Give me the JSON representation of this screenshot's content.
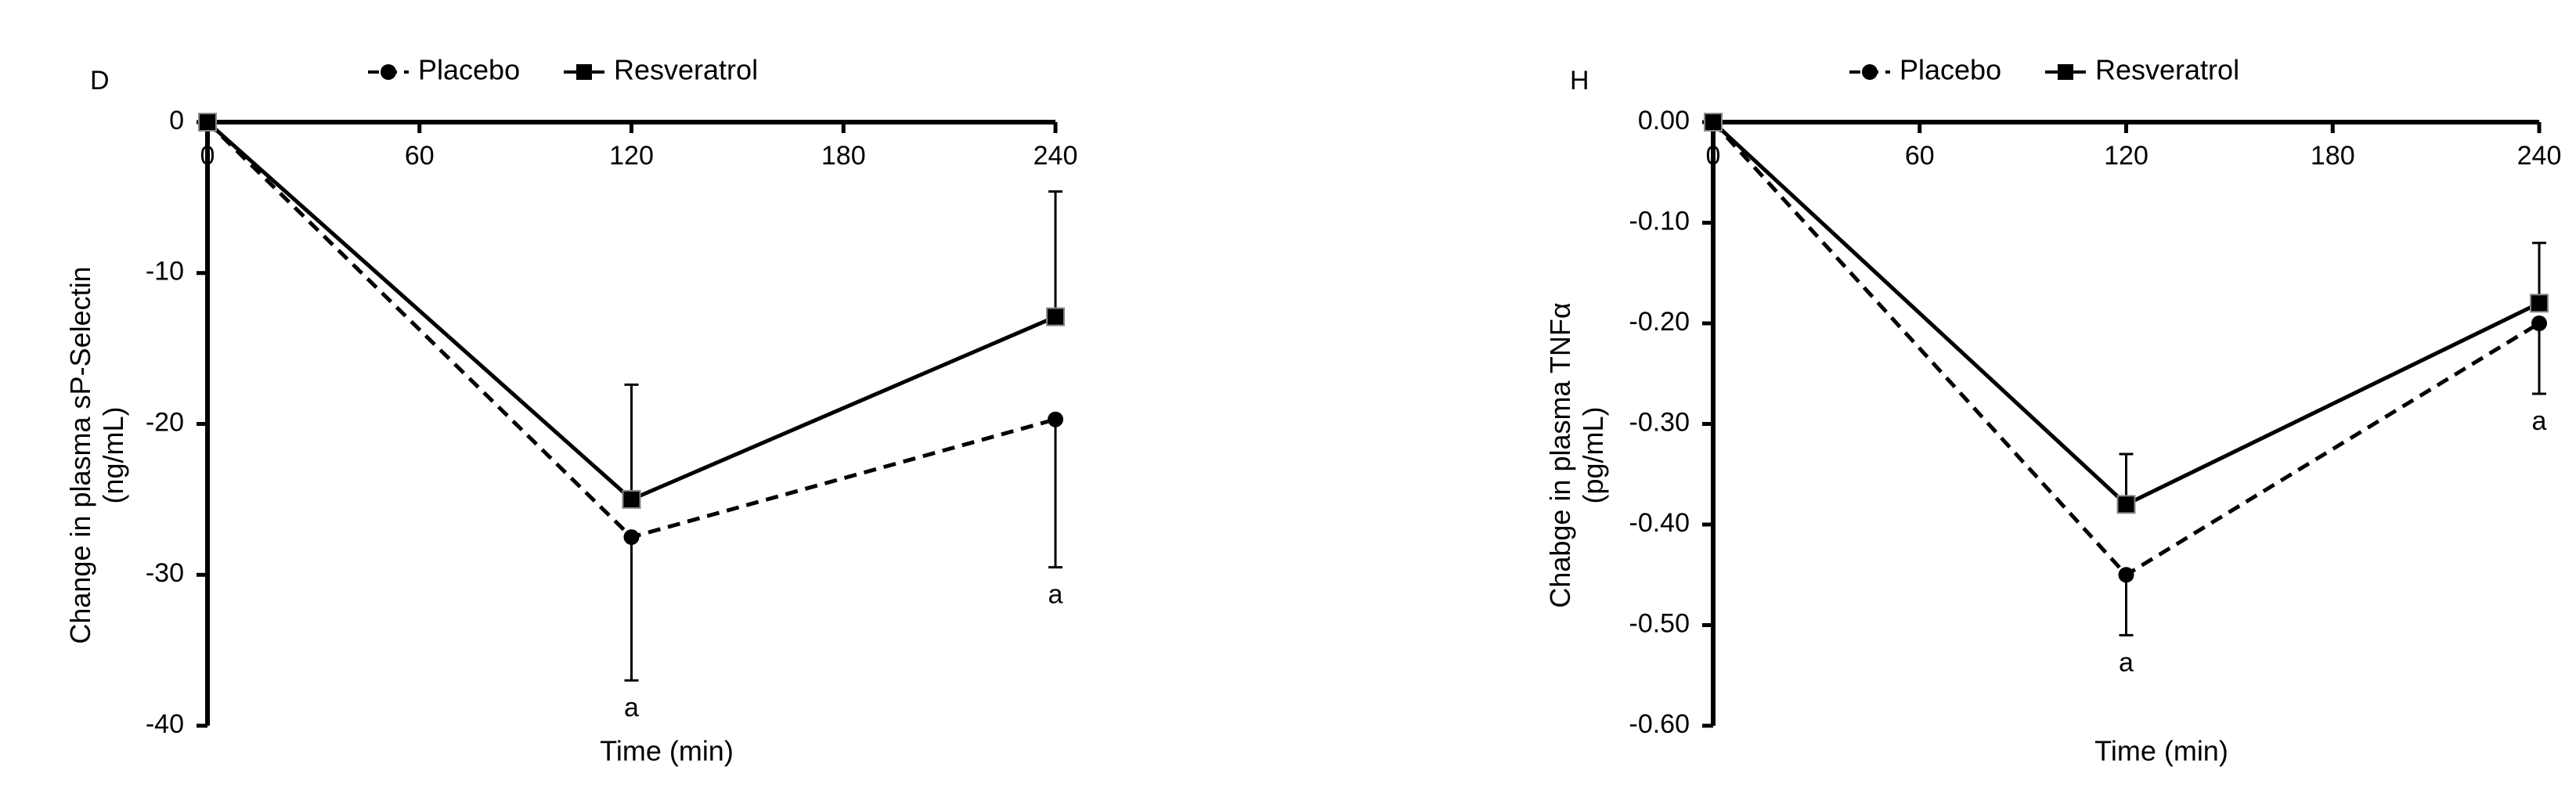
{
  "chart_data": [
    {
      "type": "line",
      "panel_label": "D",
      "xlabel": "Time (min)",
      "ylabel_line1": "Change in plasma sP-Selectin",
      "ylabel_line2": "(ng/mL)",
      "x_ticks": [
        "0",
        "60",
        "120",
        "180",
        "240"
      ],
      "y_ticks": [
        "0",
        "-10",
        "-20",
        "-30",
        "-40"
      ],
      "xlim": [
        0,
        240
      ],
      "ylim": [
        -40,
        0
      ],
      "x_axis_position": "top",
      "grid": false,
      "legend": [
        "Placebo",
        "Resveratrol"
      ],
      "legend_position": "top",
      "series": [
        {
          "name": "Placebo",
          "style": "dashed",
          "marker": "circle",
          "x": [
            0,
            120,
            240
          ],
          "y": [
            0,
            -27.5,
            -19.7
          ],
          "error_lower": [
            null,
            -37.0,
            -29.5
          ],
          "error_upper": [
            null,
            null,
            null
          ],
          "annotations": [
            null,
            "a",
            "a"
          ]
        },
        {
          "name": "Resveratrol",
          "style": "solid",
          "marker": "square",
          "x": [
            0,
            120,
            240
          ],
          "y": [
            0,
            -25.0,
            -12.9
          ],
          "error_lower": [
            null,
            null,
            null
          ],
          "error_upper": [
            null,
            -17.4,
            -4.6
          ],
          "annotations": [
            null,
            null,
            null
          ]
        }
      ]
    },
    {
      "type": "line",
      "panel_label": "H",
      "xlabel": "Time (min)",
      "ylabel_line1": "Chabge in plasma TNFα",
      "ylabel_line2": "(pg/mL)",
      "x_ticks": [
        "0",
        "60",
        "120",
        "180",
        "240"
      ],
      "y_ticks": [
        "0.00",
        "-0.10",
        "-0.20",
        "-0.30",
        "-0.40",
        "-0.50",
        "-0.60"
      ],
      "xlim": [
        0,
        240
      ],
      "ylim": [
        -0.6,
        0
      ],
      "x_axis_position": "top",
      "grid": false,
      "legend": [
        "Placebo",
        "Resveratrol"
      ],
      "legend_position": "top",
      "series": [
        {
          "name": "Placebo",
          "style": "dashed",
          "marker": "circle",
          "x": [
            0,
            120,
            240
          ],
          "y": [
            0,
            -0.45,
            -0.2
          ],
          "error_lower": [
            null,
            -0.51,
            -0.27
          ],
          "error_upper": [
            null,
            null,
            null
          ],
          "annotations": [
            null,
            "a",
            "a"
          ]
        },
        {
          "name": "Resveratrol",
          "style": "solid",
          "marker": "square",
          "x": [
            0,
            120,
            240
          ],
          "y": [
            0,
            -0.38,
            -0.18
          ],
          "error_lower": [
            null,
            null,
            null
          ],
          "error_upper": [
            null,
            -0.33,
            -0.12
          ],
          "annotations": [
            null,
            null,
            null
          ]
        }
      ]
    }
  ]
}
